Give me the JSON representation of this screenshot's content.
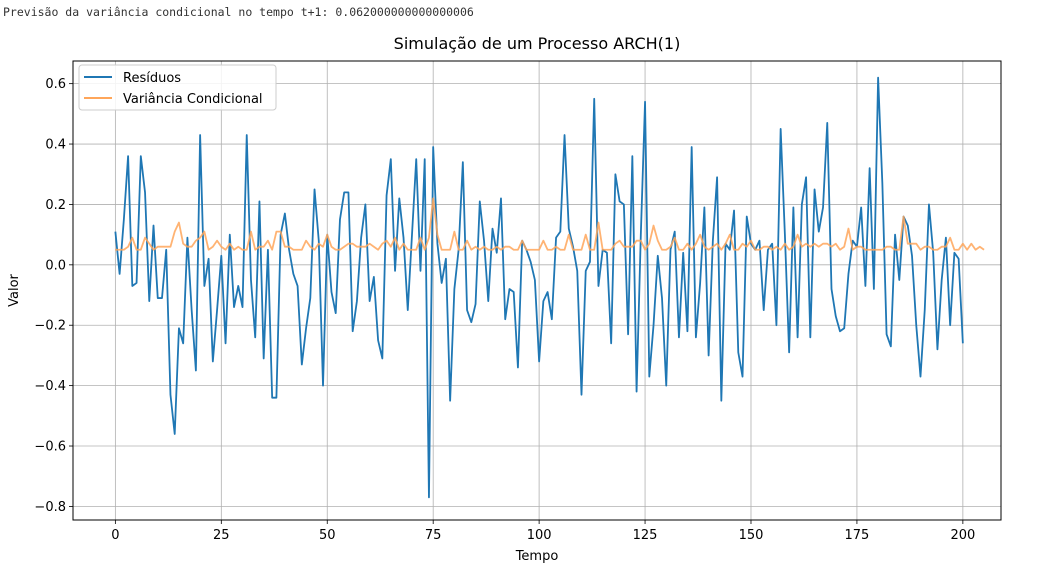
{
  "console": {
    "label": "Previsão da variância condicional no tempo t+1:",
    "value": "0.062000000000000006"
  },
  "chart_data": {
    "type": "line",
    "title": "Simulação de um Processo ARCH(1)",
    "xlabel": "Tempo",
    "ylabel": "Valor",
    "xlim": [
      -10,
      209
    ],
    "ylim": [
      -0.845,
      0.675
    ],
    "xticks": [
      0,
      25,
      50,
      75,
      100,
      125,
      150,
      175,
      200
    ],
    "yticks": [
      -0.8,
      -0.6,
      -0.4,
      -0.2,
      0.0,
      0.2,
      0.4,
      0.6
    ],
    "ytick_labels": [
      "−0.8",
      "−0.6",
      "−0.4",
      "−0.2",
      "0.0",
      "0.2",
      "0.4",
      "0.6"
    ],
    "grid": true,
    "legend_position": "upper-left",
    "series": [
      {
        "name": "Resíduos",
        "color": "#1f77b4",
        "values": [
          0.11,
          -0.03,
          0.15,
          0.36,
          -0.07,
          -0.06,
          0.36,
          0.24,
          -0.12,
          0.13,
          -0.11,
          -0.11,
          0.05,
          -0.43,
          -0.56,
          -0.21,
          -0.26,
          0.09,
          -0.15,
          -0.35,
          0.43,
          -0.07,
          0.02,
          -0.32,
          -0.15,
          0.03,
          -0.26,
          0.1,
          -0.14,
          -0.07,
          -0.14,
          0.43,
          -0.05,
          -0.24,
          0.21,
          -0.31,
          0.05,
          -0.44,
          -0.44,
          0.1,
          0.17,
          0.05,
          -0.03,
          -0.07,
          -0.33,
          -0.21,
          -0.11,
          0.25,
          0.08,
          -0.4,
          0.1,
          -0.09,
          -0.16,
          0.15,
          0.24,
          0.24,
          -0.22,
          -0.12,
          0.09,
          0.2,
          -0.12,
          -0.04,
          -0.25,
          -0.31,
          0.23,
          0.35,
          -0.02,
          0.22,
          0.09,
          -0.15,
          0.1,
          0.35,
          -0.02,
          0.35,
          -0.77,
          0.39,
          0.07,
          -0.06,
          0.02,
          -0.45,
          -0.08,
          0.05,
          0.34,
          -0.15,
          -0.19,
          -0.13,
          0.21,
          0.08,
          -0.12,
          0.12,
          0.04,
          0.22,
          -0.18,
          -0.08,
          -0.09,
          -0.34,
          0.08,
          0.05,
          0.01,
          -0.05,
          -0.32,
          -0.12,
          -0.09,
          -0.18,
          0.09,
          0.11,
          0.43,
          0.12,
          0.06,
          -0.02,
          -0.43,
          -0.02,
          0.01,
          0.55,
          -0.07,
          0.05,
          0.04,
          -0.26,
          0.3,
          0.21,
          0.2,
          -0.23,
          0.36,
          -0.42,
          0.1,
          0.54,
          -0.37,
          -0.2,
          0.03,
          -0.11,
          -0.4,
          0.05,
          0.11,
          -0.24,
          0.04,
          -0.22,
          0.39,
          -0.24,
          -0.06,
          0.19,
          -0.3,
          0.08,
          0.29,
          -0.45,
          0.07,
          0.05,
          0.18,
          -0.29,
          -0.37,
          0.16,
          0.07,
          0.05,
          0.08,
          -0.15,
          0.05,
          0.07,
          -0.2,
          0.45,
          0.1,
          -0.29,
          0.19,
          -0.24,
          0.2,
          0.29,
          -0.24,
          0.25,
          0.11,
          0.19,
          0.47,
          -0.08,
          -0.17,
          -0.22,
          -0.21,
          -0.03,
          0.08,
          0.06,
          0.19,
          -0.07,
          0.32,
          -0.08,
          0.62,
          0.27,
          -0.23,
          -0.27,
          0.1,
          -0.05,
          0.16,
          0.13,
          0.03,
          -0.2,
          -0.37,
          -0.15,
          0.2,
          0.04,
          -0.28,
          -0.05,
          0.09,
          -0.2,
          0.04,
          0.02,
          -0.26
        ]
      },
      {
        "name": "Variância Condicional",
        "color": "#ffa65a",
        "values": [
          0.05,
          0.05,
          0.05,
          0.06,
          0.09,
          0.05,
          0.05,
          0.09,
          0.07,
          0.05,
          0.06,
          0.06,
          0.06,
          0.06,
          0.11,
          0.14,
          0.07,
          0.06,
          0.06,
          0.08,
          0.09,
          0.11,
          0.05,
          0.06,
          0.08,
          0.06,
          0.05,
          0.07,
          0.05,
          0.06,
          0.05,
          0.05,
          0.11,
          0.05,
          0.06,
          0.06,
          0.08,
          0.05,
          0.11,
          0.11,
          0.06,
          0.06,
          0.05,
          0.05,
          0.05,
          0.08,
          0.06,
          0.05,
          0.07,
          0.06,
          0.1,
          0.06,
          0.05,
          0.05,
          0.06,
          0.07,
          0.07,
          0.06,
          0.06,
          0.06,
          0.07,
          0.06,
          0.05,
          0.07,
          0.08,
          0.06,
          0.09,
          0.05,
          0.07,
          0.05,
          0.05,
          0.05,
          0.09,
          0.05,
          0.09,
          0.22,
          0.1,
          0.05,
          0.05,
          0.05,
          0.11,
          0.05,
          0.05,
          0.08,
          0.05,
          0.06,
          0.05,
          0.06,
          0.05,
          0.05,
          0.06,
          0.05,
          0.06,
          0.06,
          0.05,
          0.05,
          0.08,
          0.05,
          0.05,
          0.05,
          0.05,
          0.08,
          0.05,
          0.05,
          0.06,
          0.05,
          0.05,
          0.1,
          0.05,
          0.05,
          0.05,
          0.1,
          0.05,
          0.05,
          0.14,
          0.05,
          0.05,
          0.05,
          0.07,
          0.08,
          0.06,
          0.06,
          0.06,
          0.08,
          0.08,
          0.05,
          0.07,
          0.13,
          0.08,
          0.05,
          0.05,
          0.06,
          0.09,
          0.05,
          0.05,
          0.07,
          0.05,
          0.07,
          0.1,
          0.06,
          0.05,
          0.06,
          0.07,
          0.05,
          0.07,
          0.1,
          0.05,
          0.05,
          0.07,
          0.06,
          0.08,
          0.05,
          0.05,
          0.06,
          0.06,
          0.05,
          0.06,
          0.05,
          0.07,
          0.05,
          0.06,
          0.1,
          0.06,
          0.07,
          0.06,
          0.07,
          0.06,
          0.07,
          0.07,
          0.06,
          0.07,
          0.05,
          0.06,
          0.12,
          0.05,
          0.06,
          0.06,
          0.05,
          0.05,
          0.05,
          0.05,
          0.05,
          0.06,
          0.06,
          0.05,
          0.05,
          0.16,
          0.07,
          0.07,
          0.07,
          0.05,
          0.06,
          0.06,
          0.05,
          0.05,
          0.06,
          0.06,
          0.09,
          0.05,
          0.05,
          0.07,
          0.05,
          0.07,
          0.05,
          0.06,
          0.05
        ]
      }
    ]
  }
}
